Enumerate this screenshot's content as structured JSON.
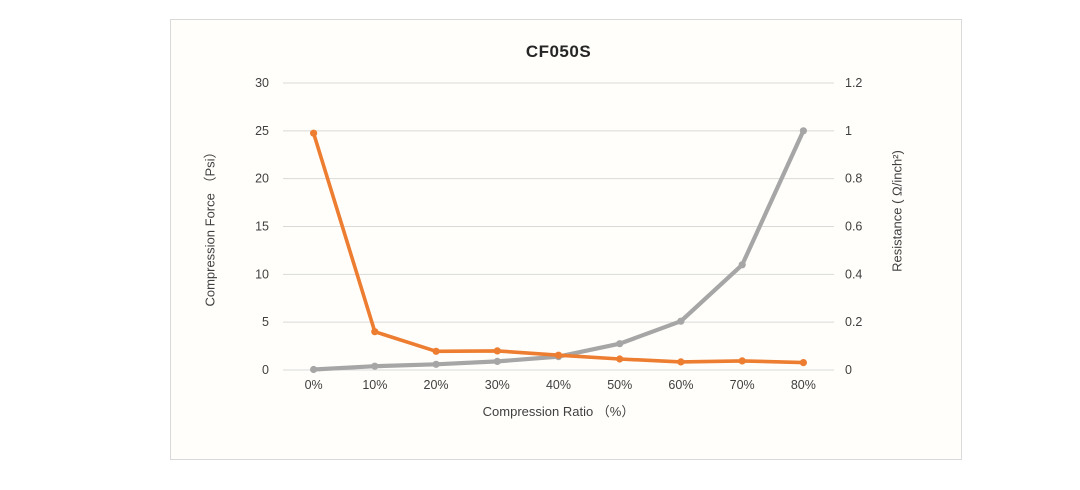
{
  "chart_data": {
    "type": "line",
    "title": "CF050S",
    "categories": [
      "0%",
      "10%",
      "20%",
      "30%",
      "40%",
      "50%",
      "60%",
      "70%",
      "80%"
    ],
    "series": [
      {
        "id": "compression-force",
        "name": "Compression Force (Psi)",
        "axis": "left",
        "color": "#a6a6a6",
        "values": [
          0.05,
          0.4,
          0.6,
          0.9,
          1.4,
          2.75,
          5.1,
          11,
          25
        ]
      },
      {
        "id": "resistance",
        "name": "Resistance (Ω/inch²)",
        "axis": "right",
        "color": "#ed7d31",
        "values": [
          0.99,
          0.16,
          0.078,
          0.08,
          0.062,
          0.046,
          0.034,
          0.038,
          0.031
        ]
      }
    ],
    "xlabel": "Compression Ratio （%）",
    "left_axis": {
      "label": "Compression Force （Psi）",
      "ticks": [
        "0",
        "5",
        "10",
        "15",
        "20",
        "25",
        "30"
      ],
      "lim": [
        0,
        30
      ]
    },
    "right_axis": {
      "label": "Resistance ( Ω/inch²)",
      "ticks": [
        "0",
        "0.2",
        "0.4",
        "0.6",
        "0.8",
        "1",
        "1.2"
      ],
      "lim": [
        0,
        1.2
      ]
    },
    "grid": true,
    "legend": "none",
    "colors": {
      "gridline": "#d9d9d9",
      "border": "#d9d9d9",
      "text": "#3f3f3f",
      "title": "#262626",
      "plot_bg": "#fffefa"
    }
  }
}
